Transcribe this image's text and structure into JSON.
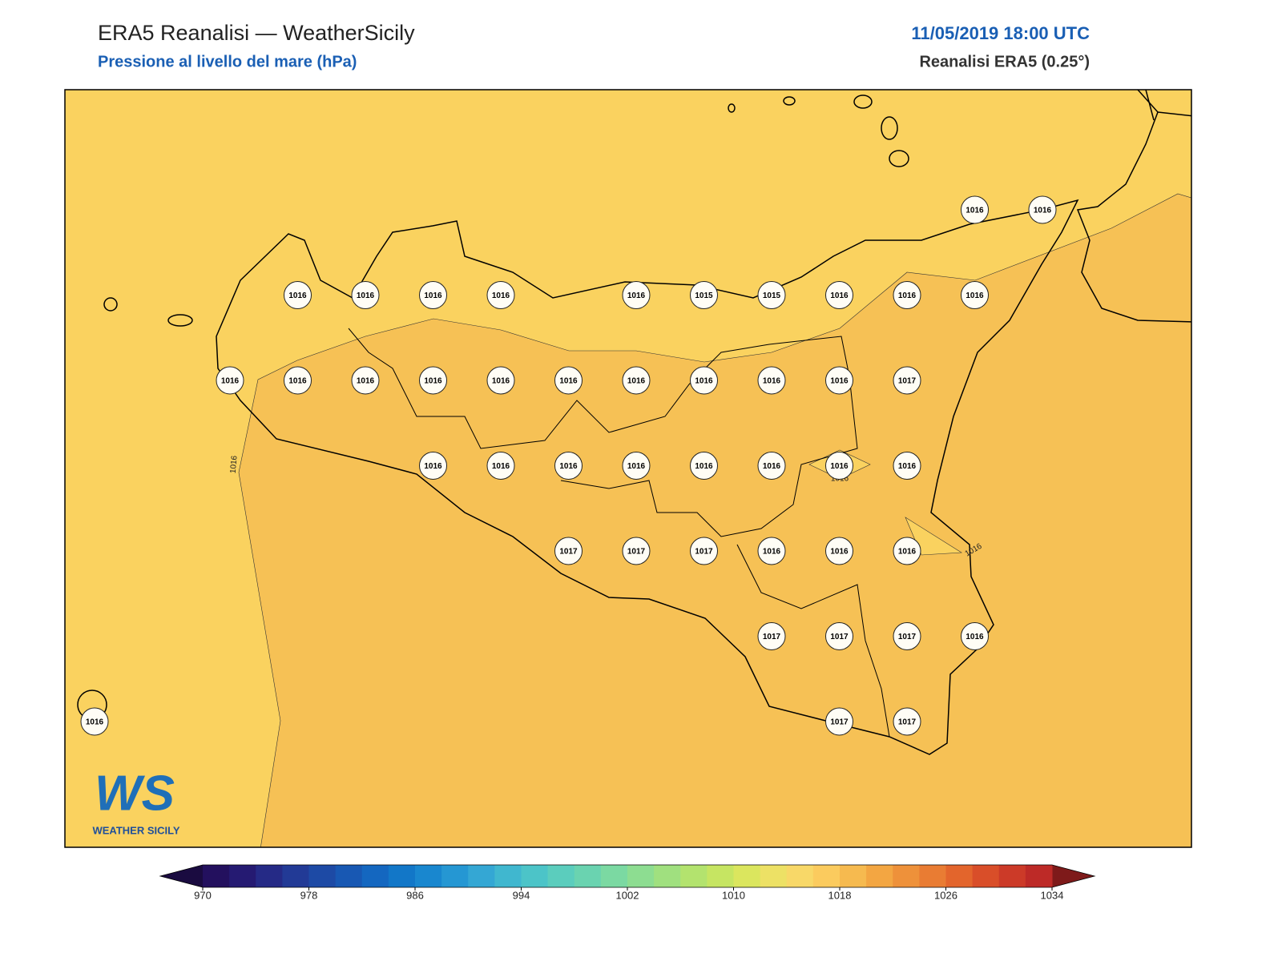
{
  "header": {
    "title": "ERA5 Reanalisi — WeatherSicily",
    "subtitle": "Pressione al livello del mare (hPa)",
    "datetime": "11/05/2019 18:00 UTC",
    "source": "Reanalisi ERA5 (0.25°)"
  },
  "stations": [
    [
      null,
      null,
      null,
      null,
      null,
      null,
      null,
      null,
      null,
      null,
      null,
      null,
      null,
      1016,
      1016
    ],
    [
      null,
      null,
      null,
      1016,
      1016,
      1016,
      1016,
      null,
      1016,
      1015,
      1015,
      1016,
      1016,
      1016,
      null
    ],
    [
      null,
      null,
      1016,
      1016,
      1016,
      1016,
      1016,
      1016,
      1016,
      1016,
      1016,
      1016,
      1017,
      null,
      null
    ],
    [
      null,
      null,
      null,
      null,
      null,
      1016,
      1016,
      1016,
      1016,
      1016,
      1016,
      1016,
      1016,
      null,
      null
    ],
    [
      null,
      null,
      null,
      null,
      null,
      null,
      null,
      1017,
      1017,
      1017,
      1016,
      1016,
      1016,
      null,
      null
    ],
    [
      null,
      null,
      null,
      null,
      null,
      null,
      null,
      null,
      null,
      null,
      1017,
      1017,
      1017,
      1016,
      null
    ],
    [
      1016,
      null,
      null,
      null,
      null,
      null,
      null,
      null,
      null,
      null,
      null,
      1017,
      1017,
      null,
      null
    ]
  ],
  "contour_labels": [
    1016,
    1016,
    1016
  ],
  "logo": {
    "mark": "WS",
    "caption": "WEATHER SICILY"
  },
  "colorbar": {
    "ticks": [
      970,
      978,
      986,
      994,
      1002,
      1010,
      1018,
      1026,
      1034
    ],
    "colors": [
      "#23105e",
      "#251a72",
      "#252a86",
      "#223a96",
      "#1d4aa5",
      "#1858b3",
      "#1467c0",
      "#1277c8",
      "#1987cf",
      "#2597d3",
      "#34a7d4",
      "#40b7cf",
      "#4cc4c8",
      "#5bcdbd",
      "#6ad3b0",
      "#7bd9a2",
      "#8ddd91",
      "#a0e07f",
      "#b3e36e",
      "#c6e562",
      "#dbe65e",
      "#ede165",
      "#f8d868",
      "#fbcb5e",
      "#f6ba4f",
      "#f3a642",
      "#ee913a",
      "#e97c33",
      "#e3652c",
      "#d94e29",
      "#cc3a28",
      "#bd2a27"
    ],
    "under": "#1a0b40",
    "over": "#7e1a1a"
  }
}
